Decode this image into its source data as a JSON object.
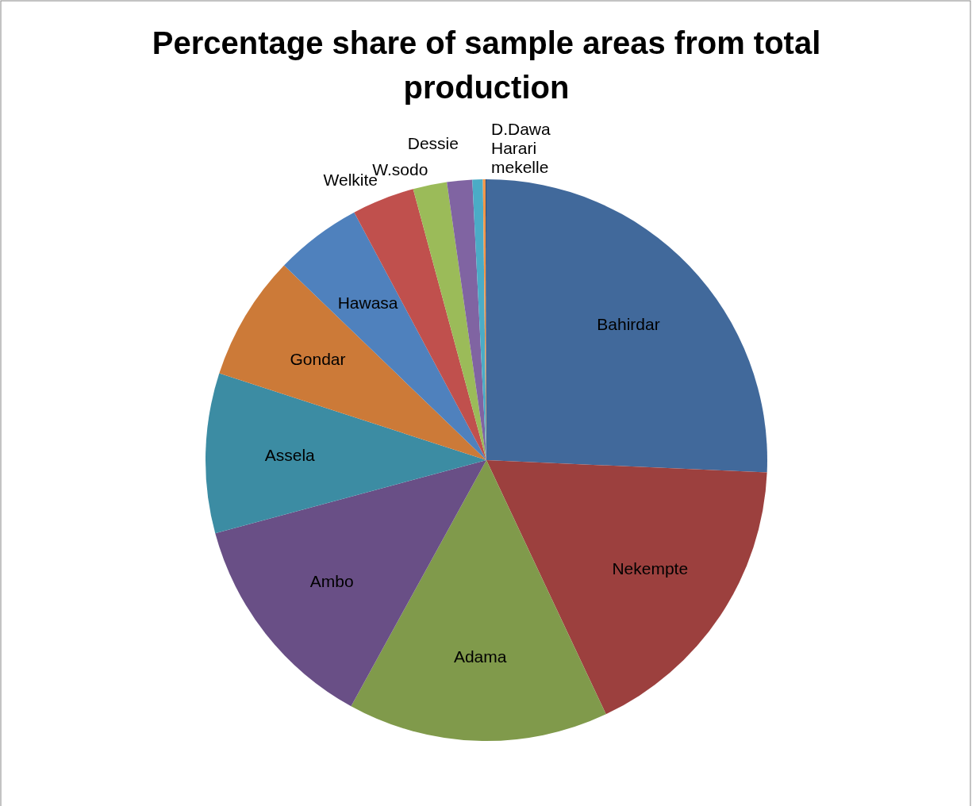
{
  "chart_data": {
    "type": "pie",
    "title": "Percentage share of sample areas from total production",
    "categories": [
      "Bahirdar",
      "Nekempte",
      "Adama",
      "Ambo",
      "Assela",
      "Gondar",
      "Hawasa",
      "Welkite",
      "W.sodo",
      "Dessie",
      "mekelle",
      "Harari",
      "D.Dawa"
    ],
    "values": [
      25.7,
      17.3,
      15.0,
      12.8,
      9.2,
      7.2,
      5.0,
      3.6,
      1.95,
      1.45,
      0.6,
      0.15,
      0.05
    ],
    "colors": [
      "#41699b",
      "#9c403e",
      "#809a4b",
      "#694f86",
      "#3c8ca3",
      "#cc7a38",
      "#4f81bd",
      "#c0504d",
      "#9bbb59",
      "#8064a2",
      "#4bacc6",
      "#f79646",
      "#2c4d75"
    ]
  }
}
